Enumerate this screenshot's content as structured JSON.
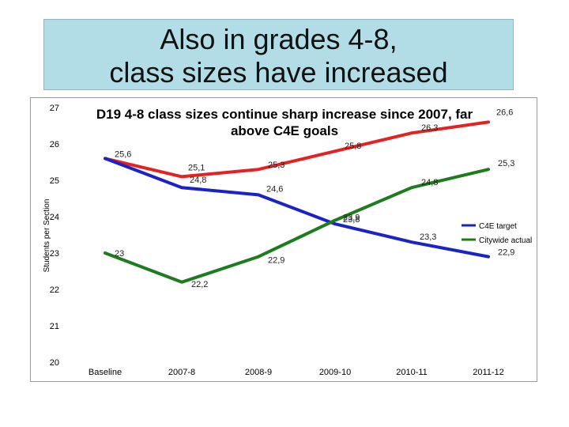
{
  "slide": {
    "title_line1": "Also in grades 4-8,",
    "title_line2": "class sizes have increased"
  },
  "chart_data": {
    "type": "line",
    "title_line1": "D19 4-8 class sizes continue sharp increase since 2007, far",
    "title_line2": "above C4E goals",
    "xlabel": "",
    "ylabel": "Students per Section",
    "categories": [
      "Baseline",
      "2007-8",
      "2008-9",
      "2009-10",
      "2010-11",
      "2011-12"
    ],
    "ylim": [
      20,
      27
    ],
    "yticks": [
      20,
      21,
      22,
      23,
      24,
      25,
      26,
      27
    ],
    "legend_position": "right",
    "series": [
      {
        "name": "",
        "color": "#e52222",
        "values": [
          25.6,
          25.1,
          25.3,
          25.8,
          26.3,
          26.6
        ],
        "labels": [
          "25,6",
          "25,1",
          "25,3",
          "25,8",
          "26,3",
          "26,6"
        ]
      },
      {
        "name": "C4E target",
        "color": "#1a22c8",
        "values": [
          25.6,
          24.8,
          24.6,
          23.8,
          23.3,
          22.9
        ],
        "labels": [
          "",
          "24,8",
          "24,6",
          "23,8",
          "23,3",
          "22,9"
        ]
      },
      {
        "name": "Citywide actual",
        "color": "#1e7b1e",
        "values": [
          23.0,
          22.2,
          22.9,
          23.9,
          24.8,
          25.3
        ],
        "labels": [
          "23",
          "22,2",
          "22,9",
          "23,9",
          "24,8",
          "25,3"
        ]
      }
    ]
  }
}
